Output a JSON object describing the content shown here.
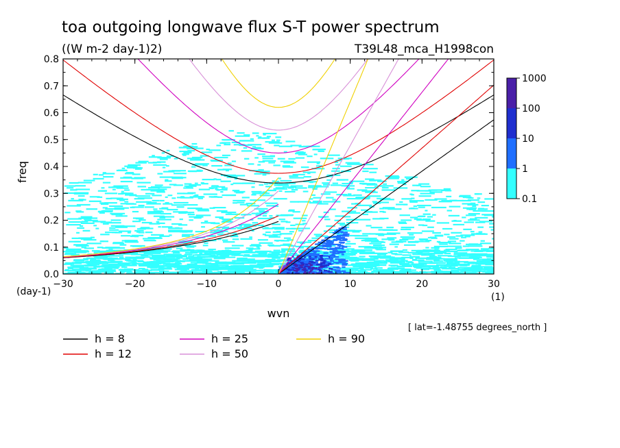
{
  "chart_data": {
    "type": "heatmap",
    "title": "toa outgoing longwave flux S-T power spectrum",
    "units_label": "((W m-2 day-1)2)",
    "experiment_label": "T39L48_mca_H1998con",
    "xlabel": "wvn",
    "ylabel": "freq",
    "x_unit_label": "(1)",
    "y_unit_label": "(day-1)",
    "xlim": [
      -30,
      30
    ],
    "ylim": [
      0,
      0.8
    ],
    "x_ticks": [
      -30,
      -20,
      -10,
      0,
      10,
      20,
      30
    ],
    "x_tick_labels": [
      "−30",
      "−20",
      "−10",
      "0",
      "10",
      "20",
      "30"
    ],
    "y_ticks": [
      0,
      0.1,
      0.2,
      0.3,
      0.4,
      0.5,
      0.6,
      0.7,
      0.8
    ],
    "y_tick_labels": [
      "0.0",
      "0.1",
      "0.2",
      "0.3",
      "0.4",
      "0.5",
      "0.6",
      "0.7",
      "0.8"
    ],
    "latitude_note": "[ lat=-1.48755 degrees_north ]",
    "colorbar": {
      "levels": [
        0.1,
        1,
        10,
        100,
        1000
      ],
      "level_labels": [
        "0.1",
        "1",
        "10",
        "100",
        "1000"
      ],
      "colors": [
        "#33ffff",
        "#1f6fff",
        "#1f2fcf",
        "#4a1fa8"
      ]
    },
    "power_regions": [
      {
        "level": "0.1-1",
        "description_region": {
          "wvn": [
            -30,
            30
          ],
          "freq": [
            0,
            0.55
          ]
        }
      },
      {
        "level": "1-10",
        "description_region": {
          "wvn": [
            -2,
            10
          ],
          "freq": [
            0,
            0.15
          ]
        }
      }
    ],
    "dispersion_curves": [
      {
        "name": "h =  8",
        "equivalent_depth": 8,
        "color": "#000000"
      },
      {
        "name": "h = 12",
        "equivalent_depth": 12,
        "color": "#e00000"
      },
      {
        "name": "h = 25",
        "equivalent_depth": 25,
        "color": "#d000c0"
      },
      {
        "name": "h = 50",
        "equivalent_depth": 50,
        "color": "#d890d8"
      },
      {
        "name": "h = 90",
        "equivalent_depth": 90,
        "color": "#f0d000"
      }
    ]
  },
  "legend_items": [
    {
      "label": "h =  8",
      "color": "#000000"
    },
    {
      "label": "h = 12",
      "color": "#e00000"
    },
    {
      "label": "h = 25",
      "color": "#d000c0"
    },
    {
      "label": "h = 50",
      "color": "#d890d8"
    },
    {
      "label": "h = 90",
      "color": "#f0d000"
    }
  ]
}
